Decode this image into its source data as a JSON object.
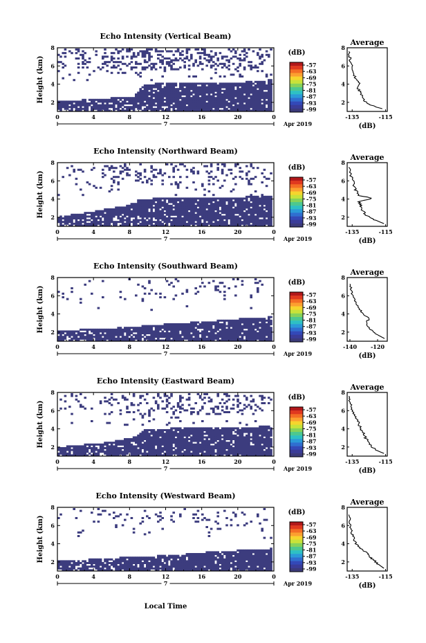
{
  "figure": {
    "xlabel": "Local Time",
    "date_label": "Apr 2019",
    "day_label": "7",
    "colorbar_title": "(dB)",
    "colorbar_ticks": [
      "-57",
      "-63",
      "-69",
      "-75",
      "-81",
      "-87",
      "-93",
      "-99"
    ],
    "colorbar_colors": [
      "#b2181a",
      "#e0391f",
      "#f46d25",
      "#fca030",
      "#f6d52d",
      "#c8e23a",
      "#86d25a",
      "#4dc88f",
      "#2ec0c4",
      "#2b9ad8",
      "#2f6fd0",
      "#3349b8",
      "#3a3c98",
      "#3b3a7a"
    ],
    "heat_color": "#3c3c7e"
  },
  "chart_data": [
    {
      "type": "heatmap",
      "title": "Echo Intensity (Vertical Beam)",
      "ylabel": "Height (km)",
      "xlim": [
        0,
        24
      ],
      "ylim": [
        1,
        8
      ],
      "xticks": [
        "0",
        "4",
        "8",
        "12",
        "16",
        "20",
        "0"
      ],
      "yticks": [
        "2",
        "4",
        "6",
        "8"
      ],
      "avg": {
        "title": "Average",
        "xlabel": "(dB)",
        "xlim": [
          -138,
          -114
        ],
        "xticks": [
          "-135",
          "-115"
        ],
        "yticks": [
          "2",
          "4",
          "6",
          "8"
        ],
        "profile": [
          [
            -117,
            1.3
          ],
          [
            -121,
            1.5
          ],
          [
            -125,
            1.8
          ],
          [
            -128,
            2.2
          ],
          [
            -129,
            2.7
          ],
          [
            -130,
            3.1
          ],
          [
            -132,
            3.6
          ],
          [
            -131,
            4.1
          ],
          [
            -133,
            4.6
          ],
          [
            -134,
            5.2
          ],
          [
            -135,
            5.8
          ],
          [
            -136,
            6.4
          ],
          [
            -136.5,
            7.0
          ],
          [
            -137,
            7.6
          ]
        ]
      }
    },
    {
      "type": "heatmap",
      "title": "Echo Intensity (Northward Beam)",
      "ylabel": "Height (km)",
      "xlim": [
        0,
        24
      ],
      "ylim": [
        1,
        8
      ],
      "xticks": [
        "0",
        "4",
        "8",
        "12",
        "16",
        "20",
        "0"
      ],
      "yticks": [
        "2",
        "4",
        "6",
        "8"
      ],
      "avg": {
        "title": "Average",
        "xlabel": "(dB)",
        "xlim": [
          -138,
          -114
        ],
        "xticks": [
          "-135",
          "-115"
        ],
        "yticks": [
          "2",
          "4",
          "6",
          "8"
        ],
        "profile": [
          [
            -116,
            1.3
          ],
          [
            -120,
            1.6
          ],
          [
            -124,
            1.9
          ],
          [
            -127,
            2.3
          ],
          [
            -129,
            2.8
          ],
          [
            -130,
            3.3
          ],
          [
            -131,
            3.7
          ],
          [
            -123,
            4.1
          ],
          [
            -131,
            4.4
          ],
          [
            -133,
            5.0
          ],
          [
            -134,
            5.6
          ],
          [
            -135,
            6.2
          ],
          [
            -136,
            6.8
          ],
          [
            -137,
            7.5
          ]
        ]
      }
    },
    {
      "type": "heatmap",
      "title": "Echo Intensity (Southward Beam)",
      "ylabel": "Height (km)",
      "xlim": [
        0,
        24
      ],
      "ylim": [
        1,
        8
      ],
      "xticks": [
        "0",
        "4",
        "8",
        "12",
        "16",
        "20",
        "0"
      ],
      "yticks": [
        "2",
        "4",
        "6",
        "8"
      ],
      "avg": {
        "title": "Average",
        "xlabel": "(dB)",
        "xlim": [
          -142,
          -113
        ],
        "xticks": [
          "-140",
          "-120"
        ],
        "yticks": [
          "2",
          "4",
          "6",
          "8"
        ],
        "profile": [
          [
            -115,
            1.3
          ],
          [
            -120,
            1.7
          ],
          [
            -124,
            2.1
          ],
          [
            -127,
            2.6
          ],
          [
            -128,
            3.1
          ],
          [
            -126,
            3.5
          ],
          [
            -131,
            4.0
          ],
          [
            -133,
            4.6
          ],
          [
            -136,
            5.3
          ],
          [
            -138,
            6.0
          ],
          [
            -139,
            6.6
          ],
          [
            -140,
            7.3
          ]
        ]
      }
    },
    {
      "type": "heatmap",
      "title": "Echo Intensity (Eastward Beam)",
      "ylabel": "Height (km)",
      "xlim": [
        0,
        24
      ],
      "ylim": [
        1,
        8
      ],
      "xticks": [
        "0",
        "4",
        "8",
        "12",
        "16",
        "20",
        "0"
      ],
      "yticks": [
        "2",
        "4",
        "6",
        "8"
      ],
      "avg": {
        "title": "Average",
        "xlabel": "(dB)",
        "xlim": [
          -138,
          -114
        ],
        "xticks": [
          "-135",
          "-115"
        ],
        "yticks": [
          "2",
          "4",
          "6",
          "8"
        ],
        "profile": [
          [
            -116,
            1.3
          ],
          [
            -120,
            1.6
          ],
          [
            -123,
            2.0
          ],
          [
            -125,
            2.5
          ],
          [
            -127,
            3.0
          ],
          [
            -128,
            3.5
          ],
          [
            -130,
            4.0
          ],
          [
            -131,
            4.6
          ],
          [
            -133,
            5.2
          ],
          [
            -134,
            5.8
          ],
          [
            -135.5,
            6.4
          ],
          [
            -136.5,
            7.0
          ],
          [
            -137,
            7.6
          ]
        ]
      }
    },
    {
      "type": "heatmap",
      "title": "Echo Intensity (Westward Beam)",
      "ylabel": "Height (km)",
      "xlim": [
        0,
        24
      ],
      "ylim": [
        1,
        8
      ],
      "xticks": [
        "0",
        "4",
        "8",
        "12",
        "16",
        "20",
        "0"
      ],
      "yticks": [
        "2",
        "4",
        "6",
        "8"
      ],
      "avg": {
        "title": "Average",
        "xlabel": "(dB)",
        "xlim": [
          -138,
          -114
        ],
        "xticks": [
          "-135",
          "-115"
        ],
        "yticks": [
          "2",
          "4",
          "6",
          "8"
        ],
        "profile": [
          [
            -116,
            1.3
          ],
          [
            -119,
            1.7
          ],
          [
            -122,
            2.2
          ],
          [
            -125,
            2.6
          ],
          [
            -126,
            3.0
          ],
          [
            -130,
            3.5
          ],
          [
            -133,
            4.0
          ],
          [
            -134,
            4.6
          ],
          [
            -135,
            5.2
          ],
          [
            -136,
            5.8
          ],
          [
            -136.5,
            6.5
          ],
          [
            -137,
            7.2
          ]
        ]
      }
    }
  ]
}
